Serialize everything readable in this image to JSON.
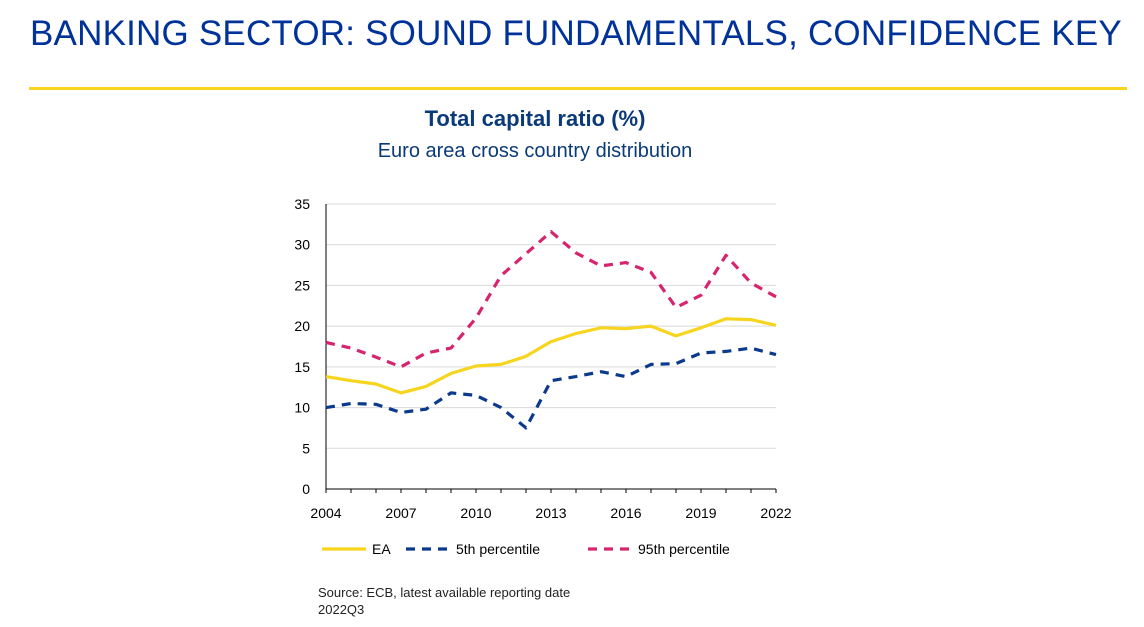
{
  "slide": {
    "title": "BANKING SECTOR: SOUND FUNDAMENTALS, CONFIDENCE KEY",
    "source_line1": "Source: ECB, latest available reporting date",
    "source_line2": "2022Q3"
  },
  "colors": {
    "title": "#003299",
    "rule": "#f7d51f",
    "ea": "#f7d51f",
    "p5": "#0b3a8c",
    "p95": "#d6256e"
  },
  "chart_data": {
    "type": "line",
    "title": "Total capital ratio (%)",
    "subtitle": "Euro area cross country distribution",
    "x": [
      2004,
      2005,
      2006,
      2007,
      2008,
      2009,
      2010,
      2011,
      2012,
      2013,
      2014,
      2015,
      2016,
      2017,
      2018,
      2019,
      2020,
      2021,
      2022
    ],
    "x_ticks": [
      "2004",
      "2007",
      "2010",
      "2013",
      "2016",
      "2019",
      "2022"
    ],
    "ylim": [
      0,
      35
    ],
    "y_ticks": [
      "0",
      "5",
      "10",
      "15",
      "20",
      "25",
      "30",
      "35"
    ],
    "grid": true,
    "legend_position": "bottom",
    "series": [
      {
        "name": "EA",
        "style": "solid",
        "color": "#f7d51f",
        "values": [
          13.8,
          13.3,
          12.9,
          11.8,
          12.6,
          14.2,
          15.1,
          15.3,
          16.3,
          18.1,
          19.1,
          19.8,
          19.7,
          20.0,
          18.8,
          19.8,
          20.9,
          20.8,
          20.1
        ]
      },
      {
        "name": "5th percentile",
        "style": "dashed",
        "color": "#0b3a8c",
        "values": [
          10.0,
          10.5,
          10.4,
          9.4,
          9.8,
          11.8,
          11.5,
          10.0,
          7.5,
          13.3,
          13.8,
          14.4,
          13.8,
          15.3,
          15.4,
          16.7,
          16.9,
          17.3,
          16.5
        ]
      },
      {
        "name": "95th percentile",
        "style": "dashed",
        "color": "#d6256e",
        "values": [
          18.0,
          17.3,
          16.2,
          15.0,
          16.7,
          17.3,
          21.0,
          26.2,
          28.9,
          31.6,
          29.0,
          27.4,
          27.8,
          26.6,
          22.3,
          23.8,
          28.7,
          25.3,
          23.6
        ]
      }
    ]
  }
}
